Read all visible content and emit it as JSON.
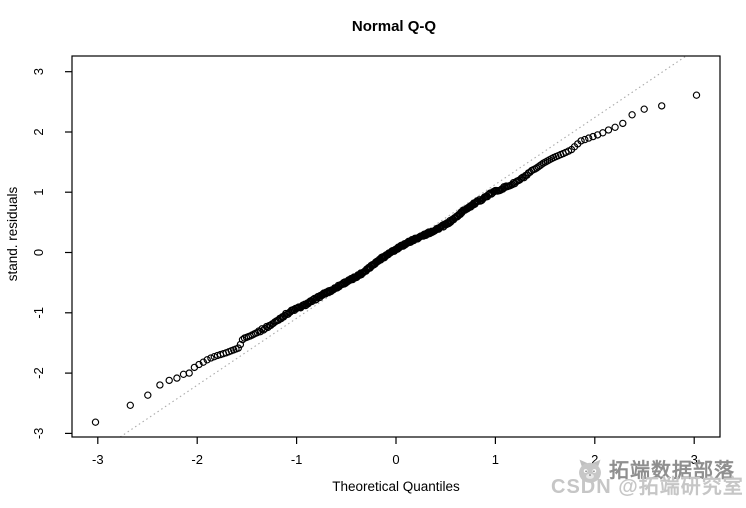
{
  "figure": {
    "background": "#ffffff"
  },
  "watermark": {
    "logo": "cat-mascot-icon",
    "line1": "拓端数据部落",
    "line2": "CSDN @拓端研究室",
    "line1_color": "#8f8f8f",
    "line2_color": "#c6c6c6"
  },
  "chart_data": {
    "type": "scatter",
    "title": "Normal Q-Q",
    "xlabel": "Theoretical Quantiles",
    "ylabel": "stand. residuals",
    "xlim": [
      -3.26,
      3.26
    ],
    "ylim": [
      -3.06,
      3.26
    ],
    "x_ticks": [
      -3,
      -2,
      -1,
      0,
      1,
      2,
      3
    ],
    "y_ticks": [
      -3,
      -2,
      -1,
      0,
      1,
      2,
      3
    ],
    "grid": false,
    "legend_position": "none",
    "marker": {
      "shape": "open-circle",
      "radius_px": 3.1,
      "color": "#000000"
    },
    "n_points": 400,
    "reference_line": {
      "type": "qqline",
      "style": "dotted",
      "slope": 1.11,
      "intercept": 0.02,
      "color": "#aaaaaa"
    },
    "qq_ridge_points": [
      [
        -3.03,
        -2.82
      ],
      [
        -2.68,
        -2.54
      ],
      [
        -2.5,
        -2.37
      ],
      [
        -2.38,
        -2.2
      ],
      [
        -2.28,
        -2.12
      ],
      [
        -2.2,
        -2.08
      ],
      [
        -2.14,
        -2.02
      ],
      [
        -2.08,
        -2.0
      ],
      [
        -2.02,
        -1.89
      ],
      [
        -1.96,
        -1.84
      ],
      [
        -1.88,
        -1.76
      ],
      [
        -1.8,
        -1.71
      ],
      [
        -1.72,
        -1.67
      ],
      [
        -1.64,
        -1.62
      ],
      [
        -1.58,
        -1.58
      ],
      [
        -1.54,
        -1.43
      ],
      [
        -1.46,
        -1.38
      ],
      [
        -1.38,
        -1.31
      ],
      [
        -1.3,
        -1.24
      ],
      [
        -1.22,
        -1.16
      ],
      [
        -1.14,
        -1.06
      ],
      [
        -1.04,
        -0.96
      ],
      [
        -0.94,
        -0.89
      ],
      [
        -0.84,
        -0.8
      ],
      [
        -0.74,
        -0.7
      ],
      [
        -0.64,
        -0.62
      ],
      [
        -0.54,
        -0.52
      ],
      [
        -0.44,
        -0.44
      ],
      [
        -0.34,
        -0.34
      ],
      [
        -0.24,
        -0.21
      ],
      [
        -0.14,
        -0.09
      ],
      [
        -0.06,
        -0.01
      ],
      [
        0.0,
        0.05
      ],
      [
        0.1,
        0.15
      ],
      [
        0.2,
        0.23
      ],
      [
        0.3,
        0.3
      ],
      [
        0.4,
        0.38
      ],
      [
        0.5,
        0.46
      ],
      [
        0.6,
        0.58
      ],
      [
        0.7,
        0.72
      ],
      [
        0.78,
        0.8
      ],
      [
        0.88,
        0.9
      ],
      [
        0.98,
        1.0
      ],
      [
        1.08,
        1.07
      ],
      [
        1.18,
        1.14
      ],
      [
        1.28,
        1.24
      ],
      [
        1.38,
        1.36
      ],
      [
        1.48,
        1.48
      ],
      [
        1.58,
        1.57
      ],
      [
        1.68,
        1.64
      ],
      [
        1.76,
        1.7
      ],
      [
        1.86,
        1.85
      ],
      [
        1.96,
        1.91
      ],
      [
        2.06,
        1.97
      ],
      [
        2.16,
        2.05
      ],
      [
        2.26,
        2.11
      ],
      [
        2.38,
        2.29
      ],
      [
        2.5,
        2.38
      ],
      [
        2.67,
        2.43
      ],
      [
        3.02,
        2.61
      ]
    ],
    "jitter_v": 0.018,
    "jitter_q_range": 1.4,
    "axis_color": "#000000",
    "text_color": "#000000"
  }
}
